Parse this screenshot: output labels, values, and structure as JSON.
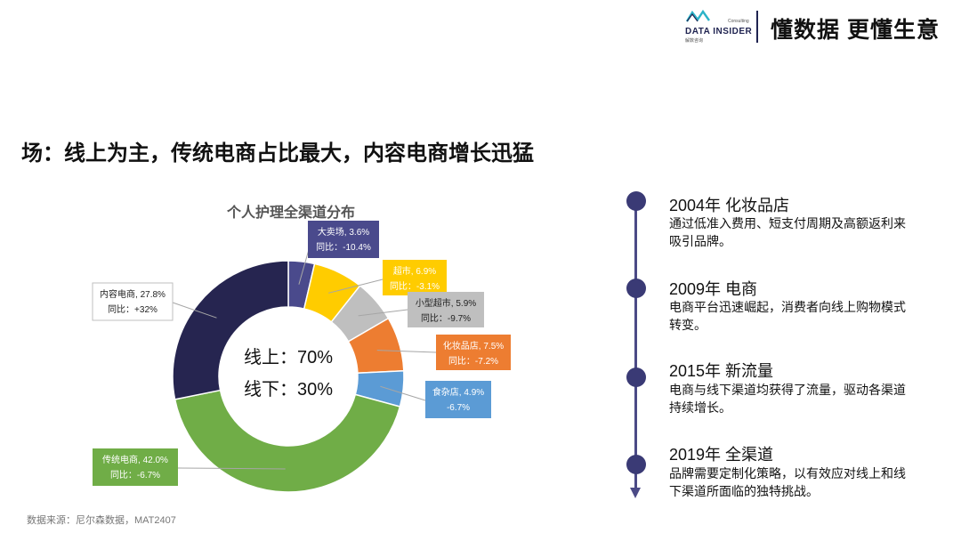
{
  "header": {
    "logo_name": "DATA INSIDER",
    "logo_consulting": "Consulting",
    "logo_cn": "解数咨询",
    "slogan": "懂数据 更懂生意"
  },
  "page_title": "场：线上为主，传统电商占比最大，内容电商增长迅猛",
  "source": "数据来源：尼尔森数据，MAT2407",
  "chart_data": {
    "type": "pie",
    "variant": "donut",
    "title": "个人护理全渠道分布",
    "center_lines": [
      "线上：70%",
      "线下：30%"
    ],
    "unit": "%",
    "slices": [
      {
        "name": "大卖场",
        "value": 3.6,
        "yoy": "-10.4%",
        "label_line1": "大卖场, 3.6%",
        "label_line2": "同比：-10.4%",
        "color": "#4a4a8c"
      },
      {
        "name": "超市",
        "value": 6.9,
        "yoy": "-3.1%",
        "label_line1": "超市, 6.9%",
        "label_line2": "同比：-3.1%",
        "color": "#ffcc00"
      },
      {
        "name": "小型超市",
        "value": 5.9,
        "yoy": "-9.7%",
        "label_line1": "小型超市, 5.9%",
        "label_line2": "同比：-9.7%",
        "color": "#bfbfbf"
      },
      {
        "name": "化妆品店",
        "value": 7.5,
        "yoy": "-7.2%",
        "label_line1": "化妆品店, 7.5%",
        "label_line2": "同比：-7.2%",
        "color": "#ed7d31"
      },
      {
        "name": "食杂店",
        "value": 4.9,
        "yoy": "-6.7%",
        "label_line1": "食杂店, 4.9%",
        "label_line2": "-6.7%",
        "color": "#5b9bd5"
      },
      {
        "name": "传统电商",
        "value": 42.0,
        "yoy": "-6.7%",
        "label_line1": "传统电商, 42.0%",
        "label_line2": "同比：-6.7%",
        "color": "#70ad47"
      },
      {
        "name": "内容电商",
        "value": 27.8,
        "yoy": "+32%",
        "label_line1": "内容电商, 27.8%",
        "label_line2": "同比：+32%",
        "color": "#262550"
      }
    ]
  },
  "timeline": [
    {
      "heading": "2004年 化妆品店",
      "text": "通过低准入费用、短支付周期及高额返利来吸引品牌。"
    },
    {
      "heading": "2009年 电商",
      "text": "电商平台迅速崛起，消费者向线上购物模式转变。"
    },
    {
      "heading": "2015年 新流量",
      "text": "电商与线下渠道均获得了流量，驱动各渠道持续增长。"
    },
    {
      "heading": "2019年 全渠道",
      "text": "品牌需要定制化策略，以有效应对线上和线下渠道所面临的独特挑战。"
    }
  ],
  "colors": {
    "accent": "#3a3a75",
    "timeline": "#4b4a86"
  }
}
